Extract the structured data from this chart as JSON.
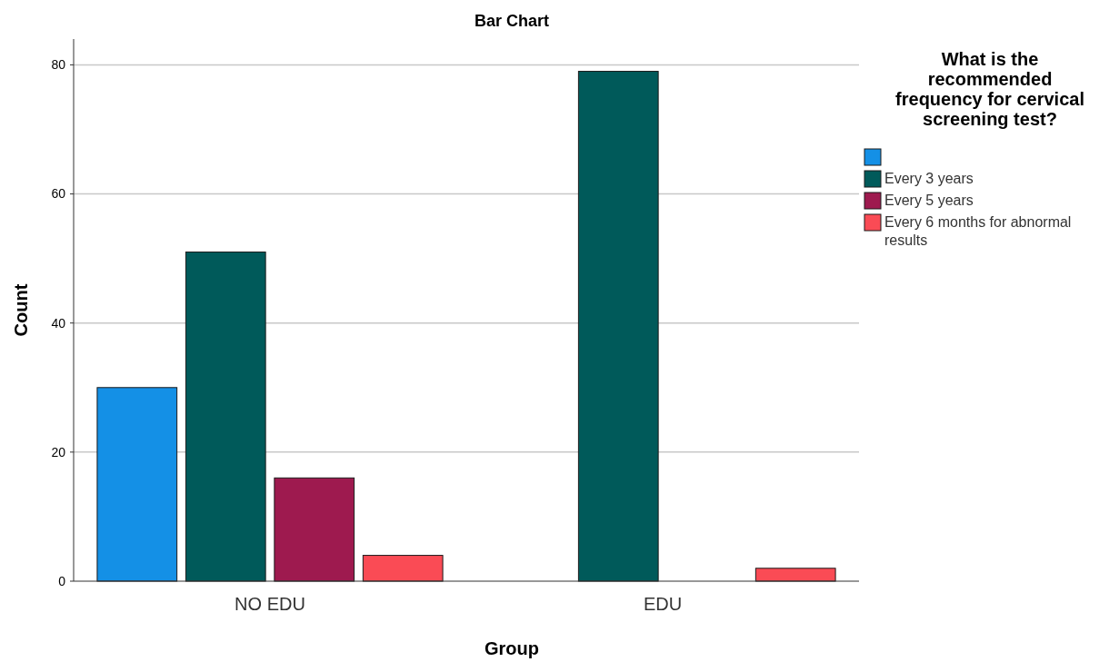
{
  "chart_data": {
    "type": "bar",
    "title": "Bar Chart",
    "xlabel": "Group",
    "ylabel": "Count",
    "legend_title": "What is the recommended frequency for cervical screening test?",
    "categories": [
      "NO EDU",
      "EDU"
    ],
    "series": [
      {
        "color": "#1490e6",
        "values": [
          30,
          null
        ]
      },
      {
        "name": "Every 3 years",
        "color": "#005a5a",
        "values": [
          51,
          79
        ]
      },
      {
        "name": "Every 5 years",
        "color": "#9e1a4f",
        "values": [
          16,
          null
        ]
      },
      {
        "name": "Every 6 months for abnormal results",
        "color": "#fa4b55",
        "values": [
          4,
          2
        ]
      }
    ],
    "ylim": [
      0,
      84
    ],
    "yticks": [
      0,
      20,
      40,
      60,
      80
    ],
    "grid": "y",
    "legend": "right"
  }
}
